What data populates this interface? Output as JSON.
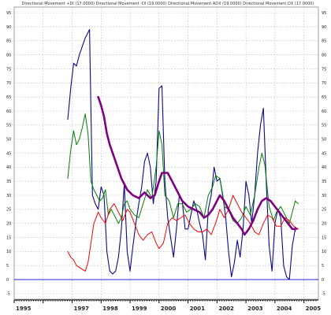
{
  "title": "Directional Movement +DI (17.0000) Directional Movement -DI (19.0000) Directional Movement ADX (19.0000) Directional Movement DX (17.0000)",
  "colors": {
    "background": "#ffffff",
    "grid": "#b8b8b8",
    "zero_line": "#2222cc",
    "series_adx": "#800080",
    "series_dx": "#0a0a8c",
    "series_plus_di": "#008000",
    "series_minus_di": "#ff0000"
  },
  "chart_data": {
    "type": "line",
    "title": "Directional Movement +DI (17.0000) Directional Movement -DI (19.0000) Directional Movement ADX (19.0000) Directional Movement DX (17.0000)",
    "xlabel": "",
    "ylabel": "",
    "xlim": [
      1995.0,
      2005.5
    ],
    "ylim": [
      -7,
      97
    ],
    "grid": true,
    "legend": "none",
    "x_ticks": [
      1995,
      1996,
      1997,
      1998,
      1999,
      2000,
      2001,
      2002,
      2003,
      2004,
      2005
    ],
    "x_tick_labels": [
      "1995",
      "",
      "1997",
      "1998",
      "1999",
      "2000",
      "2001",
      "2002",
      "2003",
      "2004",
      "2005"
    ],
    "y_ticks": [
      -5,
      0,
      5,
      10,
      15,
      20,
      25,
      30,
      35,
      40,
      45,
      50,
      55,
      60,
      65,
      70,
      75,
      80,
      85,
      90,
      95
    ],
    "y_tick_labels": [
      "-5",
      "0",
      "5",
      "10",
      "15",
      "20",
      "25",
      "30",
      "35",
      "40",
      "45",
      "50",
      "55",
      "60",
      "65",
      "70",
      "75",
      "80",
      "85",
      "90",
      "95"
    ],
    "reference_line": 0,
    "series": [
      {
        "color": "#0a0a8c",
        "width": 1.1,
        "points": [
          [
            1996.85,
            57
          ],
          [
            1996.95,
            68
          ],
          [
            1997.05,
            77
          ],
          [
            1997.15,
            76
          ],
          [
            1997.25,
            80
          ],
          [
            1997.35,
            83
          ],
          [
            1997.45,
            86
          ],
          [
            1997.6,
            89
          ],
          [
            1997.7,
            30
          ],
          [
            1997.8,
            27
          ],
          [
            1997.9,
            25
          ],
          [
            1998.0,
            33
          ],
          [
            1998.1,
            30
          ],
          [
            1998.2,
            10
          ],
          [
            1998.3,
            3
          ],
          [
            1998.4,
            2
          ],
          [
            1998.5,
            3
          ],
          [
            1998.6,
            8
          ],
          [
            1998.7,
            18
          ],
          [
            1998.8,
            34
          ],
          [
            1998.9,
            10
          ],
          [
            1999.0,
            3
          ],
          [
            1999.1,
            12
          ],
          [
            1999.2,
            20
          ],
          [
            1999.3,
            27
          ],
          [
            1999.4,
            33
          ],
          [
            1999.5,
            42
          ],
          [
            1999.6,
            45
          ],
          [
            1999.7,
            40
          ],
          [
            1999.8,
            27
          ],
          [
            1999.9,
            35
          ],
          [
            2000.0,
            68
          ],
          [
            2000.1,
            69
          ],
          [
            2000.2,
            35
          ],
          [
            2000.3,
            22
          ],
          [
            2000.4,
            15
          ],
          [
            2000.5,
            8
          ],
          [
            2000.6,
            18
          ],
          [
            2000.7,
            30
          ],
          [
            2000.8,
            28
          ],
          [
            2000.9,
            18
          ],
          [
            2001.0,
            18
          ],
          [
            2001.1,
            23
          ],
          [
            2001.2,
            28
          ],
          [
            2001.3,
            25
          ],
          [
            2001.4,
            20
          ],
          [
            2001.5,
            16
          ],
          [
            2001.6,
            7
          ],
          [
            2001.7,
            25
          ],
          [
            2001.8,
            30
          ],
          [
            2001.9,
            40
          ],
          [
            2002.0,
            35
          ],
          [
            2002.1,
            36
          ],
          [
            2002.2,
            30
          ],
          [
            2002.3,
            22
          ],
          [
            2002.4,
            10
          ],
          [
            2002.5,
            1
          ],
          [
            2002.6,
            6
          ],
          [
            2002.7,
            14
          ],
          [
            2002.8,
            8
          ],
          [
            2002.9,
            18
          ],
          [
            2003.0,
            35
          ],
          [
            2003.1,
            30
          ],
          [
            2003.2,
            20
          ],
          [
            2003.3,
            30
          ],
          [
            2003.4,
            45
          ],
          [
            2003.5,
            55
          ],
          [
            2003.6,
            61
          ],
          [
            2003.7,
            35
          ],
          [
            2003.8,
            12
          ],
          [
            2003.9,
            3
          ],
          [
            2004.0,
            20
          ],
          [
            2004.1,
            25
          ],
          [
            2004.2,
            22
          ],
          [
            2004.3,
            5
          ],
          [
            2004.4,
            1
          ],
          [
            2004.5,
            0
          ],
          [
            2004.6,
            12
          ],
          [
            2004.7,
            18
          ]
        ]
      },
      {
        "color": "#008000",
        "width": 1.0,
        "points": [
          [
            1996.85,
            36
          ],
          [
            1996.95,
            46
          ],
          [
            1997.05,
            53
          ],
          [
            1997.15,
            48
          ],
          [
            1997.25,
            50
          ],
          [
            1997.35,
            54
          ],
          [
            1997.45,
            59
          ],
          [
            1997.55,
            52
          ],
          [
            1997.65,
            35
          ],
          [
            1997.75,
            32
          ],
          [
            1997.85,
            30
          ],
          [
            1997.95,
            28
          ],
          [
            1998.05,
            29
          ],
          [
            1998.15,
            32
          ],
          [
            1998.25,
            23
          ],
          [
            1998.35,
            25
          ],
          [
            1998.5,
            22
          ],
          [
            1998.6,
            20
          ],
          [
            1998.7,
            22
          ],
          [
            1998.8,
            27
          ],
          [
            1998.9,
            28
          ],
          [
            1999.0,
            25
          ],
          [
            1999.15,
            23
          ],
          [
            1999.3,
            22
          ],
          [
            1999.45,
            27
          ],
          [
            1999.6,
            32
          ],
          [
            1999.75,
            29
          ],
          [
            1999.9,
            40
          ],
          [
            2000.0,
            53
          ],
          [
            2000.1,
            48
          ],
          [
            2000.2,
            30
          ],
          [
            2000.35,
            28
          ],
          [
            2000.5,
            22
          ],
          [
            2000.65,
            27
          ],
          [
            2000.8,
            27
          ],
          [
            2000.95,
            24
          ],
          [
            2001.1,
            25
          ],
          [
            2001.25,
            27
          ],
          [
            2001.4,
            26
          ],
          [
            2001.55,
            22
          ],
          [
            2001.7,
            30
          ],
          [
            2001.85,
            33
          ],
          [
            2001.95,
            37
          ],
          [
            2002.1,
            36
          ],
          [
            2002.25,
            26
          ],
          [
            2002.4,
            25
          ],
          [
            2002.55,
            21
          ],
          [
            2002.7,
            20
          ],
          [
            2002.85,
            22
          ],
          [
            2003.0,
            26
          ],
          [
            2003.15,
            23
          ],
          [
            2003.3,
            30
          ],
          [
            2003.45,
            40
          ],
          [
            2003.55,
            45
          ],
          [
            2003.65,
            41
          ],
          [
            2003.8,
            26
          ],
          [
            2003.95,
            21
          ],
          [
            2004.05,
            24
          ],
          [
            2004.2,
            26
          ],
          [
            2004.35,
            23
          ],
          [
            2004.5,
            20
          ],
          [
            2004.6,
            24
          ],
          [
            2004.7,
            28
          ],
          [
            2004.8,
            27
          ]
        ]
      },
      {
        "color": "#ff0000",
        "width": 1.0,
        "points": [
          [
            1996.85,
            10
          ],
          [
            1996.95,
            8
          ],
          [
            1997.05,
            7
          ],
          [
            1997.15,
            5
          ],
          [
            1997.3,
            4
          ],
          [
            1997.45,
            3
          ],
          [
            1997.55,
            6
          ],
          [
            1997.65,
            13
          ],
          [
            1997.75,
            20
          ],
          [
            1997.9,
            24
          ],
          [
            1998.0,
            22
          ],
          [
            1998.15,
            20
          ],
          [
            1998.3,
            25
          ],
          [
            1998.45,
            27
          ],
          [
            1998.6,
            24
          ],
          [
            1998.75,
            21
          ],
          [
            1998.9,
            25
          ],
          [
            1999.0,
            24
          ],
          [
            1999.15,
            20
          ],
          [
            1999.3,
            16
          ],
          [
            1999.45,
            14
          ],
          [
            1999.6,
            16
          ],
          [
            1999.75,
            17
          ],
          [
            1999.9,
            13
          ],
          [
            2000.0,
            11
          ],
          [
            2000.15,
            13
          ],
          [
            2000.3,
            20
          ],
          [
            2000.45,
            22
          ],
          [
            2000.6,
            21
          ],
          [
            2000.75,
            22
          ],
          [
            2000.9,
            23
          ],
          [
            2001.05,
            20
          ],
          [
            2001.2,
            18
          ],
          [
            2001.35,
            17
          ],
          [
            2001.5,
            17
          ],
          [
            2001.65,
            18
          ],
          [
            2001.8,
            16
          ],
          [
            2001.95,
            20
          ],
          [
            2002.1,
            25
          ],
          [
            2002.25,
            22
          ],
          [
            2002.4,
            25
          ],
          [
            2002.55,
            30
          ],
          [
            2002.7,
            27
          ],
          [
            2002.85,
            24
          ],
          [
            2003.0,
            22
          ],
          [
            2003.15,
            20
          ],
          [
            2003.3,
            17
          ],
          [
            2003.45,
            16
          ],
          [
            2003.6,
            20
          ],
          [
            2003.75,
            23
          ],
          [
            2003.9,
            22
          ],
          [
            2004.05,
            19
          ],
          [
            2004.2,
            19
          ],
          [
            2004.35,
            22
          ],
          [
            2004.5,
            21
          ],
          [
            2004.65,
            19
          ],
          [
            2004.8,
            18
          ]
        ]
      },
      {
        "color": "#800080",
        "width": 2.6,
        "points": [
          [
            1997.9,
            65
          ],
          [
            1998.0,
            62
          ],
          [
            1998.1,
            58
          ],
          [
            1998.2,
            52
          ],
          [
            1998.3,
            48
          ],
          [
            1998.5,
            42
          ],
          [
            1998.7,
            36
          ],
          [
            1998.9,
            32
          ],
          [
            1999.1,
            30
          ],
          [
            1999.3,
            29
          ],
          [
            1999.5,
            31
          ],
          [
            1999.7,
            29
          ],
          [
            1999.85,
            30
          ],
          [
            2000.0,
            35
          ],
          [
            2000.1,
            38
          ],
          [
            2000.3,
            38
          ],
          [
            2000.45,
            35
          ],
          [
            2000.6,
            32
          ],
          [
            2000.8,
            28
          ],
          [
            2001.0,
            26
          ],
          [
            2001.2,
            25
          ],
          [
            2001.4,
            24
          ],
          [
            2001.55,
            22
          ],
          [
            2001.7,
            23
          ],
          [
            2001.85,
            25
          ],
          [
            2002.0,
            28
          ],
          [
            2002.1,
            30
          ],
          [
            2002.25,
            28
          ],
          [
            2002.4,
            25
          ],
          [
            2002.55,
            22
          ],
          [
            2002.7,
            20
          ],
          [
            2002.85,
            18
          ],
          [
            2002.95,
            16
          ],
          [
            2003.1,
            18
          ],
          [
            2003.25,
            21
          ],
          [
            2003.4,
            25
          ],
          [
            2003.55,
            28
          ],
          [
            2003.7,
            29
          ],
          [
            2003.85,
            28
          ],
          [
            2004.0,
            26
          ],
          [
            2004.15,
            24
          ],
          [
            2004.3,
            22
          ],
          [
            2004.45,
            20
          ],
          [
            2004.6,
            18
          ],
          [
            2004.7,
            18
          ]
        ]
      }
    ],
    "end_marker": {
      "x": 2004.7,
      "y": 18,
      "color": "#800080"
    }
  }
}
